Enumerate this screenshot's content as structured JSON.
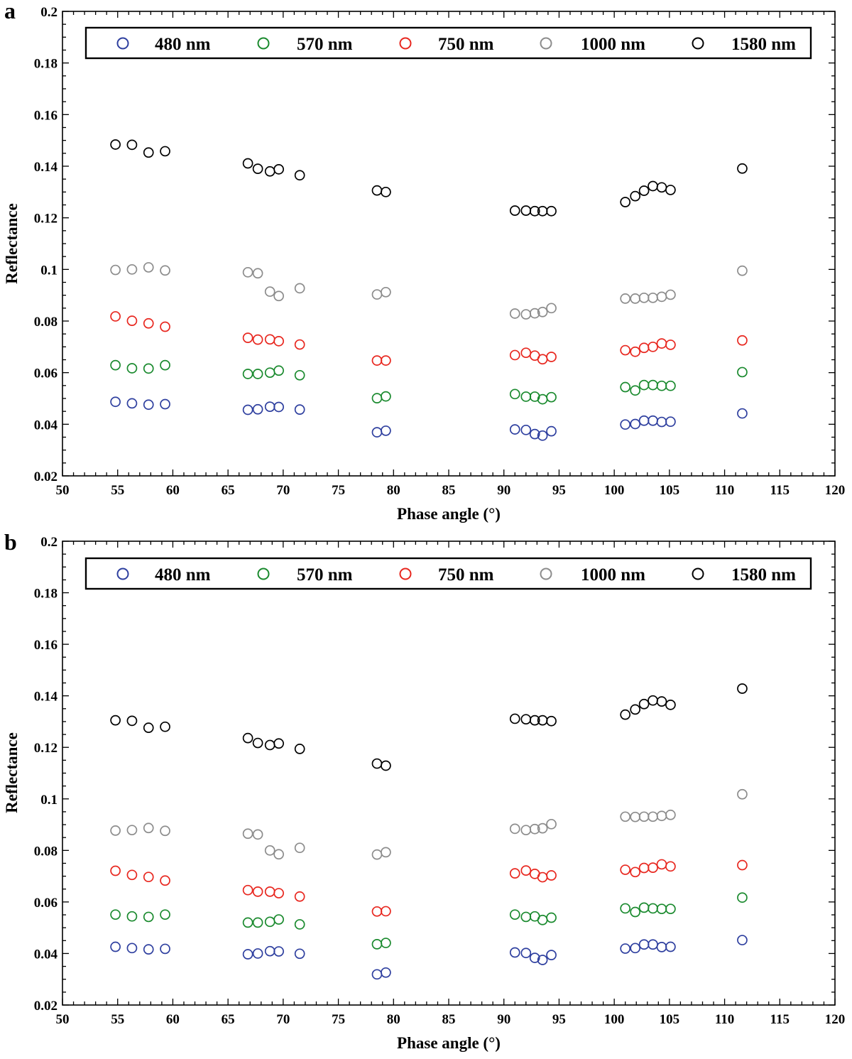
{
  "chart_data": [
    {
      "type": "scatter",
      "panel_label": "a",
      "xlabel": "Phase angle (°)",
      "ylabel": "Reflectance",
      "xlim": [
        50,
        120
      ],
      "ylim": [
        0.02,
        0.2
      ],
      "xticks": [
        "50",
        "55",
        "60",
        "65",
        "70",
        "75",
        "80",
        "85",
        "90",
        "95",
        "100",
        "105",
        "110",
        "115",
        "120"
      ],
      "yticks": [
        "0.02",
        "0.04",
        "0.06",
        "0.08",
        "0.1",
        "0.12",
        "0.14",
        "0.16",
        "0.18",
        "0.2"
      ],
      "legend_position": "top",
      "grid": false,
      "x": [
        54.8,
        56.3,
        57.8,
        59.3,
        66.8,
        67.7,
        68.8,
        69.6,
        71.5,
        78.5,
        79.3,
        91.0,
        92.0,
        92.8,
        93.5,
        94.3,
        101.0,
        101.9,
        102.7,
        103.5,
        104.3,
        105.1,
        111.6
      ],
      "series": [
        {
          "name": "480 nm",
          "color": "#2e3f9f",
          "values": [
            0.0487,
            0.0481,
            0.0476,
            0.0478,
            0.0456,
            0.0458,
            0.0468,
            0.0467,
            0.0457,
            0.0369,
            0.0375,
            0.038,
            0.0378,
            0.0362,
            0.0356,
            0.0373,
            0.0399,
            0.0401,
            0.0414,
            0.0414,
            0.0409,
            0.041,
            0.0442
          ]
        },
        {
          "name": "570 nm",
          "color": "#1a8a2e",
          "values": [
            0.0629,
            0.0617,
            0.0616,
            0.0629,
            0.0595,
            0.0595,
            0.06,
            0.0608,
            0.059,
            0.0501,
            0.0508,
            0.0517,
            0.0507,
            0.0507,
            0.0497,
            0.0505,
            0.0544,
            0.0531,
            0.0552,
            0.0552,
            0.0549,
            0.0549,
            0.0602
          ]
        },
        {
          "name": "750 nm",
          "color": "#e8271f",
          "values": [
            0.0818,
            0.0801,
            0.0791,
            0.0778,
            0.0735,
            0.0728,
            0.0729,
            0.0722,
            0.0709,
            0.0647,
            0.0647,
            0.0668,
            0.0677,
            0.0666,
            0.0652,
            0.0661,
            0.0687,
            0.0681,
            0.0696,
            0.07,
            0.0713,
            0.0708,
            0.0725
          ]
        },
        {
          "name": "1000 nm",
          "color": "#8c8c8c",
          "values": [
            0.0998,
            0.1,
            0.1008,
            0.0996,
            0.0989,
            0.0985,
            0.0914,
            0.0897,
            0.0927,
            0.0903,
            0.0912,
            0.0829,
            0.0826,
            0.083,
            0.0835,
            0.085,
            0.0887,
            0.0887,
            0.089,
            0.089,
            0.0894,
            0.0902,
            0.0995
          ]
        },
        {
          "name": "1580 nm",
          "color": "#000000",
          "values": [
            0.1484,
            0.1483,
            0.1453,
            0.1458,
            0.1411,
            0.139,
            0.138,
            0.1388,
            0.1365,
            0.1306,
            0.13,
            0.1228,
            0.1228,
            0.1226,
            0.1226,
            0.1226,
            0.1261,
            0.1284,
            0.1305,
            0.1323,
            0.1318,
            0.1308,
            0.1391
          ]
        }
      ]
    },
    {
      "type": "scatter",
      "panel_label": "b",
      "xlabel": "Phase angle (°)",
      "ylabel": "Reflectance",
      "xlim": [
        50,
        120
      ],
      "ylim": [
        0.02,
        0.2
      ],
      "xticks": [
        "50",
        "55",
        "60",
        "65",
        "70",
        "75",
        "80",
        "85",
        "90",
        "95",
        "100",
        "105",
        "110",
        "115",
        "120"
      ],
      "yticks": [
        "0.02",
        "0.04",
        "0.06",
        "0.08",
        "0.1",
        "0.12",
        "0.14",
        "0.16",
        "0.18",
        "0.2"
      ],
      "legend_position": "top",
      "grid": false,
      "x": [
        54.8,
        56.3,
        57.8,
        59.3,
        66.8,
        67.7,
        68.8,
        69.6,
        71.5,
        78.5,
        79.3,
        91.0,
        92.0,
        92.8,
        93.5,
        94.3,
        101.0,
        101.9,
        102.7,
        103.5,
        104.3,
        105.1,
        111.6
      ],
      "series": [
        {
          "name": "480 nm",
          "color": "#2e3f9f",
          "values": [
            0.0426,
            0.0421,
            0.0416,
            0.0418,
            0.0397,
            0.04,
            0.0409,
            0.0408,
            0.0399,
            0.0319,
            0.0326,
            0.0404,
            0.0402,
            0.0383,
            0.0375,
            0.0394,
            0.0419,
            0.0421,
            0.0435,
            0.0435,
            0.0425,
            0.0426,
            0.0452
          ]
        },
        {
          "name": "570 nm",
          "color": "#1a8a2e",
          "values": [
            0.0551,
            0.0544,
            0.0542,
            0.0551,
            0.052,
            0.052,
            0.0523,
            0.0532,
            0.0513,
            0.0436,
            0.0441,
            0.0551,
            0.0542,
            0.0544,
            0.053,
            0.0539,
            0.0575,
            0.0561,
            0.0578,
            0.0575,
            0.0573,
            0.0573,
            0.0617
          ]
        },
        {
          "name": "750 nm",
          "color": "#e8271f",
          "values": [
            0.0721,
            0.0705,
            0.0697,
            0.0683,
            0.0646,
            0.064,
            0.064,
            0.0634,
            0.0621,
            0.0563,
            0.0564,
            0.0711,
            0.0722,
            0.0709,
            0.0696,
            0.0703,
            0.0725,
            0.0716,
            0.0732,
            0.0733,
            0.0746,
            0.0738,
            0.0743
          ]
        },
        {
          "name": "1000 nm",
          "color": "#8c8c8c",
          "values": [
            0.0877,
            0.0879,
            0.0887,
            0.0876,
            0.0865,
            0.0862,
            0.08,
            0.0785,
            0.081,
            0.0784,
            0.0793,
            0.0884,
            0.0879,
            0.0883,
            0.0886,
            0.0902,
            0.0931,
            0.093,
            0.0931,
            0.0931,
            0.0934,
            0.0938,
            0.1018
          ]
        },
        {
          "name": "1580 nm",
          "color": "#000000",
          "values": [
            0.1305,
            0.1303,
            0.1276,
            0.128,
            0.1236,
            0.1217,
            0.1209,
            0.1215,
            0.1194,
            0.1137,
            0.1129,
            0.1311,
            0.1309,
            0.1305,
            0.1305,
            0.1302,
            0.1327,
            0.1347,
            0.1368,
            0.1382,
            0.1378,
            0.1365,
            0.1428
          ]
        }
      ]
    }
  ]
}
